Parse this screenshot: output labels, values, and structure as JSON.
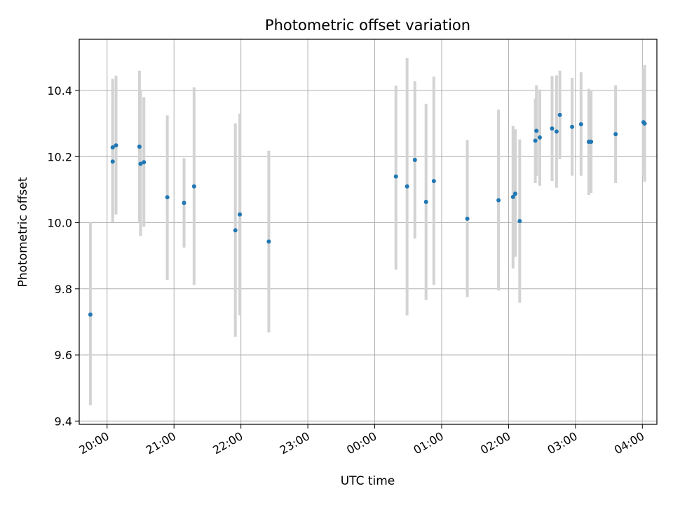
{
  "chart_data": {
    "type": "scatter",
    "title": "Photometric offset variation",
    "xlabel": "UTC time",
    "ylabel": "Photometric offset",
    "x_axis": "time",
    "x_start_time": "19:35",
    "x_end_time": "04:13",
    "xticks": [
      "20:00",
      "21:00",
      "22:00",
      "23:00",
      "00:00",
      "01:00",
      "02:00",
      "03:00",
      "04:00"
    ],
    "ylim": [
      9.39,
      10.555
    ],
    "yticks": [
      "9.4",
      "9.6",
      "9.8",
      "10.0",
      "10.2",
      "10.4"
    ],
    "grid": true,
    "marker_color": "#1f77b4",
    "errorbar_color": "#d3d3d3",
    "points": [
      {
        "time": "19:45",
        "y": 9.722,
        "low": 9.448,
        "high": 10.0
      },
      {
        "time": "20:05",
        "y": 10.185,
        "low": 10.0,
        "high": 10.435
      },
      {
        "time": "20:05",
        "y": 10.228,
        "low": 10.02,
        "high": 10.37
      },
      {
        "time": "20:08",
        "y": 10.234,
        "low": 10.025,
        "high": 10.445
      },
      {
        "time": "20:29",
        "y": 10.23,
        "low": 10.0,
        "high": 10.46
      },
      {
        "time": "20:30",
        "y": 10.178,
        "low": 9.96,
        "high": 10.4
      },
      {
        "time": "20:33",
        "y": 10.183,
        "low": 9.988,
        "high": 10.38
      },
      {
        "time": "20:54",
        "y": 10.077,
        "low": 9.827,
        "high": 10.325
      },
      {
        "time": "21:09",
        "y": 10.06,
        "low": 9.925,
        "high": 10.195
      },
      {
        "time": "21:18",
        "y": 10.11,
        "low": 9.812,
        "high": 10.41
      },
      {
        "time": "21:55",
        "y": 9.977,
        "low": 9.655,
        "high": 10.3
      },
      {
        "time": "21:59",
        "y": 10.025,
        "low": 9.72,
        "high": 10.33
      },
      {
        "time": "22:25",
        "y": 9.943,
        "low": 9.668,
        "high": 10.218
      },
      {
        "time": "00:19",
        "y": 10.14,
        "low": 9.858,
        "high": 10.415
      },
      {
        "time": "00:29",
        "y": 10.11,
        "low": 9.72,
        "high": 10.498
      },
      {
        "time": "00:36",
        "y": 10.19,
        "low": 9.952,
        "high": 10.428
      },
      {
        "time": "00:46",
        "y": 10.063,
        "low": 9.766,
        "high": 10.36
      },
      {
        "time": "00:53",
        "y": 10.126,
        "low": 9.812,
        "high": 10.442
      },
      {
        "time": "01:23",
        "y": 10.012,
        "low": 9.775,
        "high": 10.25
      },
      {
        "time": "01:51",
        "y": 10.068,
        "low": 9.795,
        "high": 10.342
      },
      {
        "time": "02:04",
        "y": 10.078,
        "low": 9.862,
        "high": 10.293
      },
      {
        "time": "02:06",
        "y": 10.088,
        "low": 9.897,
        "high": 10.283
      },
      {
        "time": "02:10",
        "y": 10.005,
        "low": 9.758,
        "high": 10.252
      },
      {
        "time": "02:24",
        "y": 10.248,
        "low": 10.12,
        "high": 10.376
      },
      {
        "time": "02:25",
        "y": 10.278,
        "low": 10.141,
        "high": 10.416
      },
      {
        "time": "02:28",
        "y": 10.258,
        "low": 10.112,
        "high": 10.403
      },
      {
        "time": "02:39",
        "y": 10.285,
        "low": 10.126,
        "high": 10.444
      },
      {
        "time": "02:43",
        "y": 10.276,
        "low": 10.106,
        "high": 10.446
      },
      {
        "time": "02:46",
        "y": 10.326,
        "low": 10.192,
        "high": 10.46
      },
      {
        "time": "02:57",
        "y": 10.29,
        "low": 10.142,
        "high": 10.438
      },
      {
        "time": "03:05",
        "y": 10.298,
        "low": 10.142,
        "high": 10.455
      },
      {
        "time": "03:12",
        "y": 10.245,
        "low": 10.084,
        "high": 10.405
      },
      {
        "time": "03:14",
        "y": 10.245,
        "low": 10.09,
        "high": 10.398
      },
      {
        "time": "03:36",
        "y": 10.268,
        "low": 10.12,
        "high": 10.416
      },
      {
        "time": "04:01",
        "y": 10.304,
        "low": 10.143,
        "high": 10.466
      },
      {
        "time": "04:02",
        "y": 10.3,
        "low": 10.124,
        "high": 10.477
      }
    ]
  }
}
